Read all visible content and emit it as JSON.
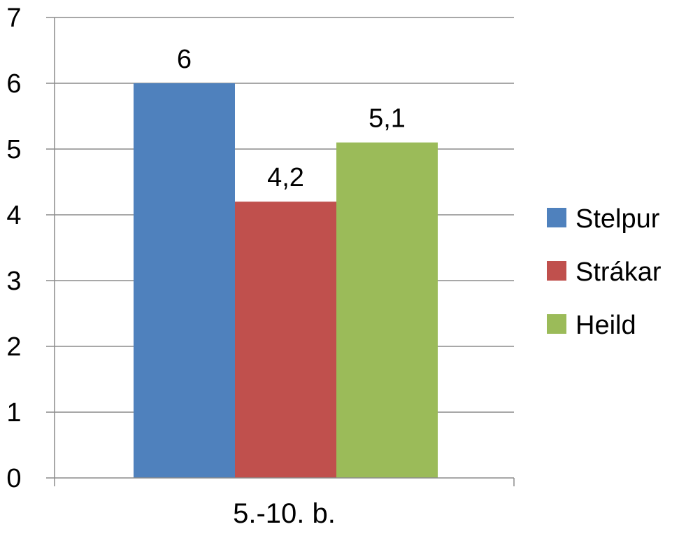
{
  "chart_data": {
    "type": "bar",
    "categories": [
      "5.-10. b."
    ],
    "series": [
      {
        "name": "Stelpur",
        "values": [
          6
        ],
        "label": "6",
        "color": "#4F81BD"
      },
      {
        "name": "Strákar",
        "values": [
          4.2
        ],
        "label": "4,2",
        "color": "#C0504D"
      },
      {
        "name": "Heild",
        "values": [
          5.1
        ],
        "label": "5,1",
        "color": "#9BBB59"
      }
    ],
    "ylim": [
      0,
      7
    ],
    "yticks": [
      "0",
      "1",
      "2",
      "3",
      "4",
      "5",
      "6",
      "7"
    ],
    "grid": true,
    "legend_position": "right"
  }
}
